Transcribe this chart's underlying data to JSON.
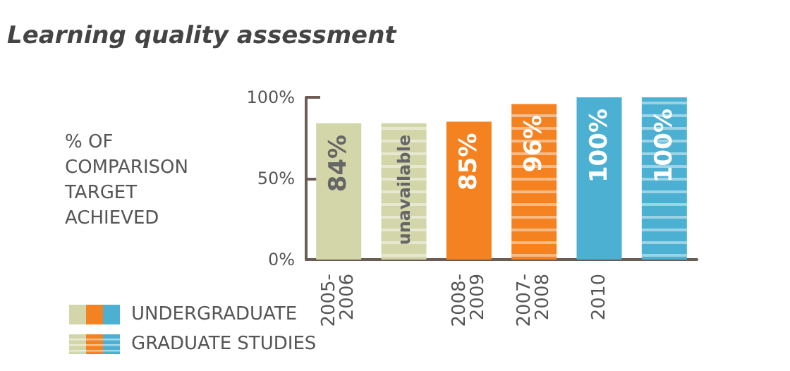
{
  "chart_data": {
    "type": "bar",
    "title": "Learning quality assessment",
    "ylabel": "% OF COMPARISON TARGET ACHIEVED",
    "categories": [
      "2005-2006",
      null,
      "2008-2009",
      "2007-2008",
      "2010",
      null
    ],
    "series": [
      {
        "name": "UNDERGRADUATE",
        "colors": [
          "#d3d6a9",
          "#d3d6a9",
          "#f58220",
          "#f58220",
          "#4bb0d2",
          "#4bb0d2"
        ],
        "values": [
          84,
          null,
          85,
          null,
          100,
          null
        ],
        "value_labels": [
          "84%",
          null,
          "85%",
          null,
          "100%",
          null
        ]
      },
      {
        "name": "GRADUATE STUDIES",
        "colors": [
          "#d3d6a9",
          "#d3d6a9",
          "#f58220",
          "#f58220",
          "#4bb0d2",
          "#4bb0d2"
        ],
        "values": [
          null,
          84,
          null,
          96,
          null,
          100
        ],
        "value_labels": [
          null,
          "unavailable",
          null,
          "96%",
          null,
          "100%"
        ]
      }
    ],
    "ylim": [
      0,
      100
    ],
    "yticks": [
      {
        "value": 0,
        "label": "0%"
      },
      {
        "value": 50,
        "label": "50%"
      },
      {
        "value": 100,
        "label": "100%"
      }
    ],
    "grid": false,
    "legend": "bottom left"
  }
}
